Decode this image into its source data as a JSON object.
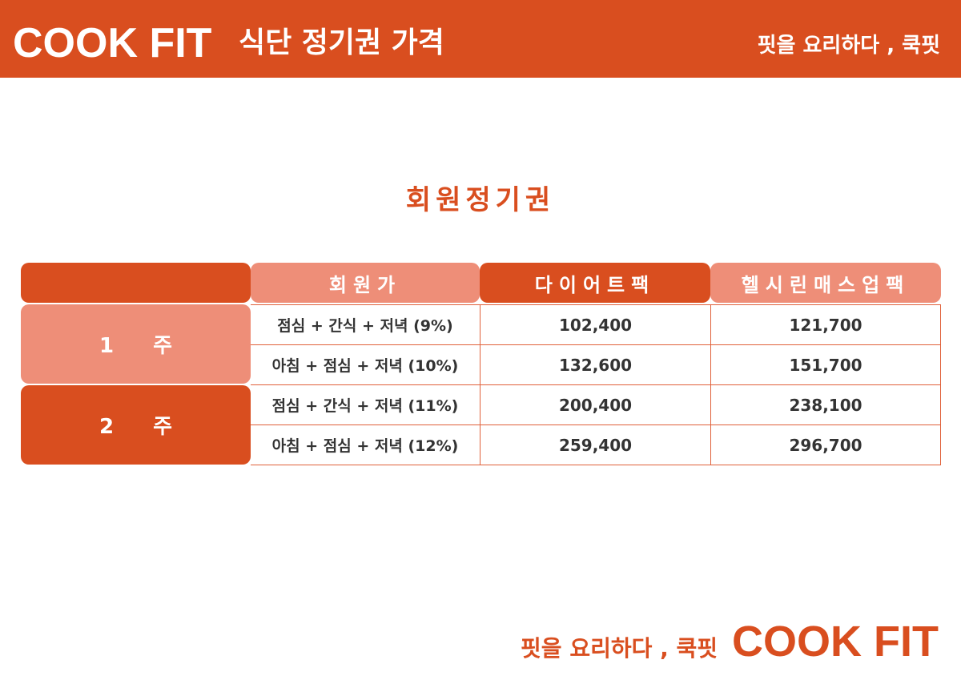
{
  "header": {
    "brand": "COOK FIT",
    "title": "식단 정기권 가격",
    "slogan": "핏을 요리하다 , 쿡핏"
  },
  "section_title": "회원정기권",
  "table": {
    "columns": [
      "",
      "회원가",
      "다이어트팩",
      "헬시린매스업팩"
    ],
    "groups": [
      {
        "label": "1 주",
        "rows": [
          {
            "plan": "점심 + 간식 + 저녁  (9%)",
            "diet": "102,400",
            "healthy": "121,700"
          },
          {
            "plan": "아침 + 점심 + 저녁 (10%)",
            "diet": "132,600",
            "healthy": "151,700"
          }
        ]
      },
      {
        "label": "2 주",
        "rows": [
          {
            "plan": "점심 + 간식 + 저녁 (11%)",
            "diet": "200,400",
            "healthy": "238,100"
          },
          {
            "plan": "아침 + 점심 + 저녁 (12%)",
            "diet": "259,400",
            "healthy": "296,700"
          }
        ]
      }
    ]
  },
  "footer": {
    "slogan": "핏을 요리하다 , 쿡핏",
    "brand": "COOK FIT"
  },
  "colors": {
    "accent": "#d94e1f",
    "accent_light": "#ee8e78"
  }
}
